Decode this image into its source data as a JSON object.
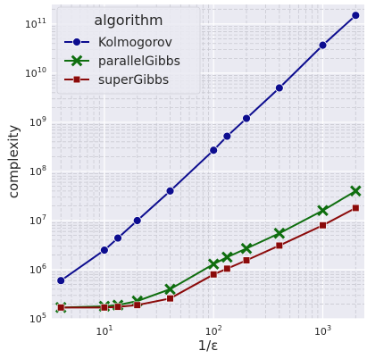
{
  "chart_data": {
    "type": "line",
    "xlabel": "1/ε",
    "ylabel": "complexity",
    "xscale": "log",
    "yscale": "log",
    "xlim": [
      3.3,
      2400
    ],
    "ylim": [
      100000,
      250000000000
    ],
    "grid": true,
    "legend": {
      "title": "algorithm",
      "placement": "top-left"
    },
    "x": [
      4,
      10,
      13.3,
      20,
      40,
      100,
      133,
      200,
      400,
      1000,
      2000
    ],
    "x_ticks": [
      {
        "value": 10,
        "base": "10",
        "exp": "1"
      },
      {
        "value": 100,
        "base": "10",
        "exp": "2"
      },
      {
        "value": 1000,
        "base": "10",
        "exp": "3"
      }
    ],
    "y_ticks": [
      {
        "value": 100000,
        "base": "10",
        "exp": "5"
      },
      {
        "value": 1000000,
        "base": "10",
        "exp": "6"
      },
      {
        "value": 10000000,
        "base": "10",
        "exp": "7"
      },
      {
        "value": 100000000,
        "base": "10",
        "exp": "8"
      },
      {
        "value": 1000000000,
        "base": "10",
        "exp": "9"
      },
      {
        "value": 10000000000,
        "base": "10",
        "exp": "10"
      },
      {
        "value": 100000000000,
        "base": "10",
        "exp": "11"
      }
    ],
    "series": [
      {
        "name": "Kolmogorov",
        "color": "#0d0d8f",
        "marker": "circle",
        "values": [
          600000,
          2500000,
          4400000,
          10000000,
          40000000,
          270000000,
          520000000,
          1200000000,
          5000000000,
          37000000000,
          150000000000
        ]
      },
      {
        "name": "parallelGibbs",
        "color": "#0f6e0f",
        "marker": "x",
        "values": [
          170000,
          180000,
          190000,
          230000,
          400000,
          1300000,
          1800000,
          2700000,
          5500000,
          16000000,
          40000000
        ]
      },
      {
        "name": "superGibbs",
        "color": "#8b0a0a",
        "marker": "square",
        "values": [
          170000,
          170000,
          175000,
          190000,
          260000,
          800000,
          1050000,
          1550000,
          3100000,
          8000000,
          18000000
        ]
      }
    ]
  }
}
